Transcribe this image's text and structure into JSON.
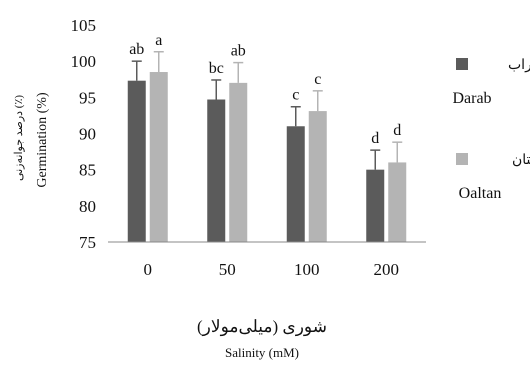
{
  "chart_data": {
    "type": "bar",
    "categories": [
      "0",
      "50",
      "100",
      "200"
    ],
    "series": [
      {
        "name": "Darab",
        "name_fa": "داراب",
        "color": "#5b5b5b",
        "values": [
          97.3,
          94.7,
          91.0,
          85.0
        ],
        "errors": [
          2.7,
          2.7,
          2.7,
          2.7
        ],
        "letters": [
          "ab",
          "bc",
          "c",
          "d"
        ]
      },
      {
        "name": "Oaltan",
        "name_fa": "اولتان",
        "color": "#b4b4b4",
        "values": [
          98.5,
          97.0,
          93.1,
          86.0
        ],
        "errors": [
          2.8,
          2.8,
          2.8,
          2.8
        ],
        "letters": [
          "a",
          "ab",
          "c",
          "d"
        ]
      }
    ],
    "ylim": [
      75,
      105
    ],
    "yticks": [
      "75",
      "80",
      "85",
      "90",
      "95",
      "100",
      "105"
    ],
    "ylabel_fa": "درصد جوانه‌زنی (٪)",
    "ylabel": "Germination (%)",
    "xlabel_fa": "شوری (میلی‌مولار)",
    "xlabel": "Salinity (mM)",
    "grid": false,
    "legend": "right"
  }
}
